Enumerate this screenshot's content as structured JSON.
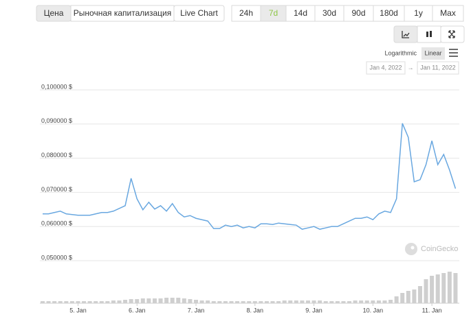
{
  "ui": {
    "tabs": [
      "Цена",
      "Рыночная капитализация",
      "Live Chart"
    ],
    "ranges": [
      "24h",
      "7d",
      "14d",
      "30d",
      "90d",
      "180d",
      "1y",
      "Max"
    ],
    "scale_label": "Logarithmic",
    "scale_button": "Linear",
    "date_from": "Jan 4, 2022",
    "date_separator": "→",
    "date_to": "Jan 11, 2022",
    "watermark": "CoinGecko"
  },
  "chart_data": {
    "type": "line",
    "x": [
      4.4,
      4.5,
      4.6,
      4.7,
      4.8,
      4.9,
      5.0,
      5.1,
      5.2,
      5.3,
      5.4,
      5.5,
      5.6,
      5.7,
      5.8,
      5.9,
      6.0,
      6.1,
      6.2,
      6.3,
      6.4,
      6.5,
      6.6,
      6.7,
      6.8,
      6.9,
      7.0,
      7.1,
      7.2,
      7.3,
      7.4,
      7.5,
      7.6,
      7.7,
      7.8,
      7.9,
      8.0,
      8.1,
      8.2,
      8.3,
      8.4,
      8.5,
      8.6,
      8.7,
      8.8,
      8.9,
      9.0,
      9.1,
      9.2,
      9.3,
      9.4,
      9.5,
      9.6,
      9.7,
      9.8,
      9.9,
      10.0,
      10.1,
      10.2,
      10.3,
      10.4,
      10.5,
      10.6,
      10.7,
      10.8,
      10.9,
      11.0,
      11.1,
      11.2,
      11.3,
      11.4
    ],
    "xlim": [
      4.4,
      11.43
    ],
    "xticks": [
      {
        "value": 5,
        "label": "5. Jan"
      },
      {
        "value": 6,
        "label": "6. Jan"
      },
      {
        "value": 7,
        "label": "7. Jan"
      },
      {
        "value": 8,
        "label": "8. Jan"
      },
      {
        "value": 9,
        "label": "9. Jan"
      },
      {
        "value": 10,
        "label": "10. Jan"
      },
      {
        "value": 11,
        "label": "11. Jan"
      }
    ],
    "ylim": [
      0.05,
      0.1
    ],
    "yticks": [
      {
        "value": 0.05,
        "label": "0,050000 $"
      },
      {
        "value": 0.06,
        "label": "0,060000 $"
      },
      {
        "value": 0.07,
        "label": "0,070000 $"
      },
      {
        "value": 0.08,
        "label": "0,080000 $"
      },
      {
        "value": 0.09,
        "label": "0,090000 $"
      },
      {
        "value": 0.1,
        "label": "0,100000 $"
      }
    ],
    "grid": true,
    "y2lim": [
      0,
      50
    ],
    "series": [
      {
        "color": "#68a7e0",
        "values": [
          0.0629,
          0.0629,
          0.0633,
          0.0637,
          0.0629,
          0.0627,
          0.0625,
          0.0625,
          0.0625,
          0.0629,
          0.0633,
          0.0633,
          0.0637,
          0.0645,
          0.0653,
          0.0733,
          0.0673,
          0.0641,
          0.0663,
          0.0643,
          0.0653,
          0.0637,
          0.0659,
          0.0633,
          0.062,
          0.0624,
          0.0616,
          0.0612,
          0.0608,
          0.0586,
          0.0586,
          0.0596,
          0.0592,
          0.0596,
          0.0588,
          0.0592,
          0.0588,
          0.06,
          0.06,
          0.0598,
          0.0602,
          0.06,
          0.0598,
          0.0596,
          0.0584,
          0.0588,
          0.0592,
          0.0584,
          0.0588,
          0.0592,
          0.0592,
          0.06,
          0.0608,
          0.0616,
          0.0616,
          0.062,
          0.0612,
          0.0629,
          0.0637,
          0.0633,
          0.0673,
          0.0894,
          0.0853,
          0.0723,
          0.0729,
          0.0773,
          0.0843,
          0.0773,
          0.0803,
          0.0757,
          0.0703
        ]
      },
      {
        "axis": "y2",
        "color": "#cfcfcf",
        "values": [
          3,
          3,
          3,
          3,
          3,
          3,
          3,
          3,
          3,
          3,
          3,
          3,
          4,
          4,
          5,
          6,
          6,
          7,
          7,
          7,
          7,
          8,
          8,
          8,
          7,
          6,
          5,
          4,
          4,
          3,
          3,
          3,
          3,
          3,
          3,
          3,
          3,
          3,
          3,
          3,
          3,
          4,
          4,
          4,
          4,
          4,
          4,
          4,
          3,
          3,
          3,
          3,
          3,
          4,
          4,
          4,
          4,
          4,
          4,
          5,
          10,
          15,
          18,
          20,
          25,
          35,
          40,
          42,
          44,
          46,
          44
        ]
      }
    ]
  }
}
